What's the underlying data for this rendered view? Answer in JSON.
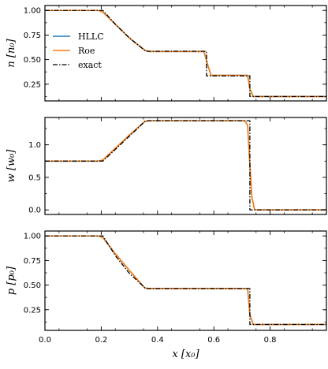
{
  "chart_data": [
    {
      "type": "line",
      "ylabel": "n [n₀]",
      "xlim": [
        0.0,
        1.0
      ],
      "ylim": [
        0.08,
        1.05
      ],
      "yticks": [
        0.25,
        0.5,
        0.75,
        1.0
      ],
      "ytick_labels": [
        "0.25",
        "0.50",
        "0.75",
        "1.00"
      ],
      "grid": false,
      "legend": {
        "placement": "upper-left",
        "entries": [
          {
            "label": "HLLC",
            "color": "#1f77b4",
            "style": "solid"
          },
          {
            "label": "Roe",
            "color": "#ff7f0e",
            "style": "solid"
          },
          {
            "label": "exact",
            "color": "#000000",
            "style": "dash-dot"
          }
        ]
      },
      "series": [
        {
          "name": "HLLC",
          "x": [
            0.0,
            0.19,
            0.205,
            0.25,
            0.3,
            0.355,
            0.37,
            0.565,
            0.578,
            0.59,
            0.72,
            0.728,
            0.74,
            1.0
          ],
          "y": [
            1.0,
            1.0,
            0.985,
            0.86,
            0.72,
            0.595,
            0.582,
            0.582,
            0.45,
            0.34,
            0.34,
            0.2,
            0.125,
            0.125
          ]
        },
        {
          "name": "Roe",
          "x": [
            0.0,
            0.19,
            0.205,
            0.25,
            0.3,
            0.355,
            0.37,
            0.565,
            0.578,
            0.59,
            0.72,
            0.728,
            0.74,
            1.0
          ],
          "y": [
            1.0,
            1.0,
            0.985,
            0.86,
            0.72,
            0.595,
            0.582,
            0.582,
            0.45,
            0.34,
            0.34,
            0.2,
            0.125,
            0.125
          ]
        },
        {
          "name": "exact",
          "x": [
            0.0,
            0.206,
            0.25,
            0.3,
            0.358,
            0.574,
            0.574,
            0.728,
            0.728,
            1.0
          ],
          "y": [
            1.0,
            1.0,
            0.86,
            0.72,
            0.585,
            0.585,
            0.335,
            0.335,
            0.125,
            0.125
          ]
        }
      ]
    },
    {
      "type": "line",
      "ylabel": "w [w₀]",
      "xlim": [
        0.0,
        1.0
      ],
      "ylim": [
        -0.07,
        1.42
      ],
      "yticks": [
        0.0,
        0.5,
        1.0
      ],
      "ytick_labels": [
        "0.0",
        "0.5",
        "1.0"
      ],
      "grid": false,
      "series": [
        {
          "name": "HLLC",
          "x": [
            0.0,
            0.19,
            0.205,
            0.3,
            0.355,
            0.37,
            0.71,
            0.72,
            0.728,
            0.735,
            0.745,
            1.0
          ],
          "y": [
            0.75,
            0.75,
            0.765,
            1.15,
            1.36,
            1.37,
            1.37,
            1.3,
            0.7,
            0.2,
            0.0,
            0.0
          ]
        },
        {
          "name": "Roe",
          "x": [
            0.0,
            0.19,
            0.205,
            0.3,
            0.355,
            0.37,
            0.71,
            0.72,
            0.728,
            0.735,
            0.745,
            1.0
          ],
          "y": [
            0.75,
            0.75,
            0.765,
            1.15,
            1.36,
            1.37,
            1.37,
            1.3,
            0.7,
            0.2,
            0.0,
            0.0
          ]
        },
        {
          "name": "exact",
          "x": [
            0.0,
            0.206,
            0.358,
            0.728,
            0.728,
            1.0
          ],
          "y": [
            0.75,
            0.75,
            1.37,
            1.37,
            0.0,
            0.0
          ]
        }
      ]
    },
    {
      "type": "line",
      "ylabel": "p [p₀]",
      "xlabel": "x [x₀]",
      "xlim": [
        0.0,
        1.0
      ],
      "xticks": [
        0.0,
        0.2,
        0.4,
        0.6,
        0.8
      ],
      "xtick_labels": [
        "0.0",
        "0.2",
        "0.4",
        "0.6",
        "0.8"
      ],
      "ylim": [
        0.04,
        1.05
      ],
      "yticks": [
        0.25,
        0.5,
        0.75,
        1.0
      ],
      "ytick_labels": [
        "0.25",
        "0.50",
        "0.75",
        "1.00"
      ],
      "grid": false,
      "series": [
        {
          "name": "HLLC",
          "x": [
            0.0,
            0.19,
            0.205,
            0.25,
            0.3,
            0.355,
            0.37,
            0.72,
            0.728,
            0.74,
            1.0
          ],
          "y": [
            1.0,
            1.0,
            0.985,
            0.82,
            0.65,
            0.47,
            0.465,
            0.465,
            0.2,
            0.1,
            0.1
          ]
        },
        {
          "name": "Roe",
          "x": [
            0.0,
            0.19,
            0.205,
            0.25,
            0.3,
            0.355,
            0.37,
            0.72,
            0.728,
            0.74,
            1.0
          ],
          "y": [
            1.0,
            1.0,
            0.985,
            0.82,
            0.65,
            0.47,
            0.465,
            0.465,
            0.2,
            0.1,
            0.1
          ]
        },
        {
          "name": "exact",
          "x": [
            0.0,
            0.206,
            0.25,
            0.3,
            0.358,
            0.728,
            0.728,
            1.0
          ],
          "y": [
            1.0,
            1.0,
            0.8,
            0.62,
            0.465,
            0.465,
            0.1,
            0.1
          ]
        }
      ]
    }
  ]
}
